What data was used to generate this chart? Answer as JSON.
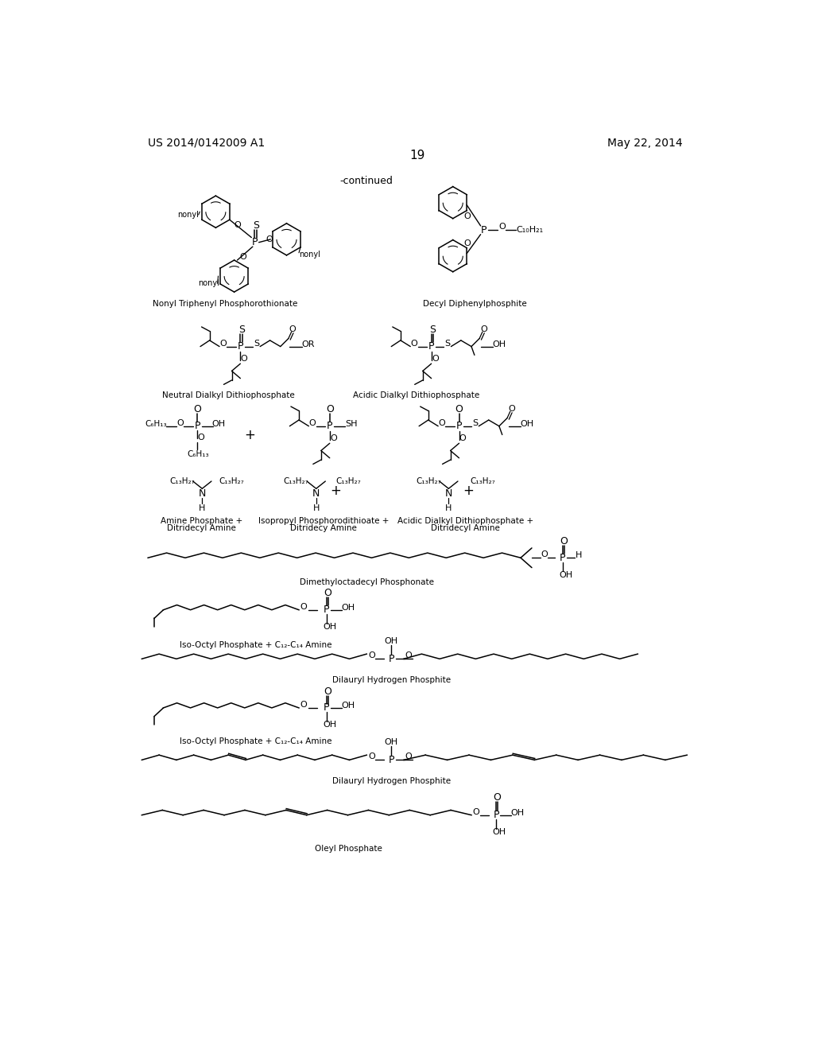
{
  "background_color": "#ffffff",
  "header_left": "US 2014/0142009 A1",
  "header_right": "May 22, 2014",
  "page_number": "19",
  "continued_text": "-continued"
}
